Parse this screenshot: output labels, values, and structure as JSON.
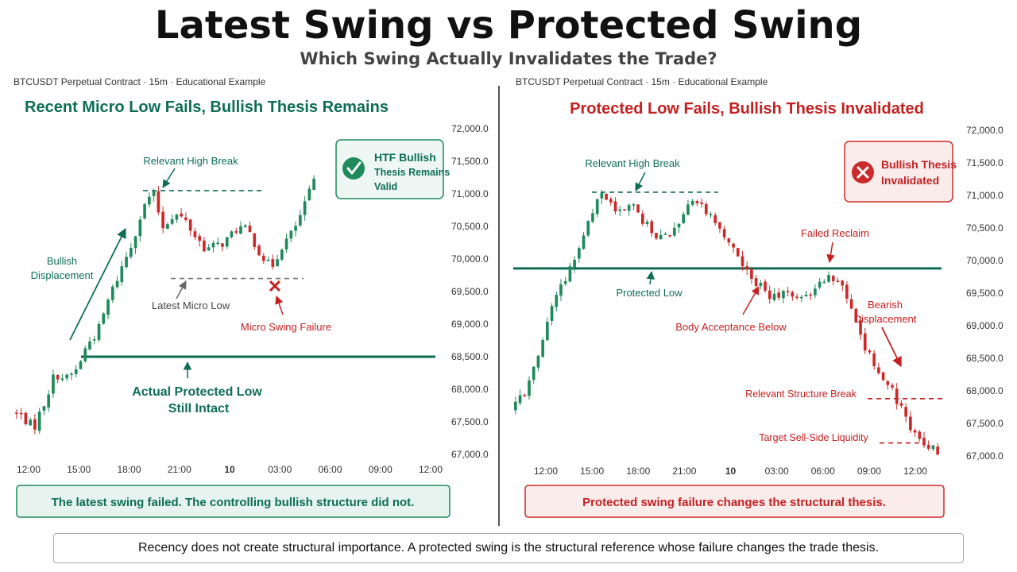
{
  "header": {
    "title": "Latest Swing vs Protected Swing",
    "subtitle": "Which Swing Actually Invalidates the Trade?"
  },
  "colors": {
    "bull": "#1f8a5b",
    "bear": "#cc2a2a",
    "green_text": "#0e6e55",
    "red_text": "#c42020",
    "protected_line": "#0e6e55"
  },
  "footer": {
    "text": "Recency does not create structural importance. A protected swing is the structural reference whose failure changes the trade thesis."
  },
  "chart_data": [
    {
      "type": "candlestick",
      "source_label": "BTCUSDT Perpetual Contract · 15m · Educational Example",
      "title": "Recent Micro Low Fails, Bullish Thesis Remains",
      "ylim": [
        66800,
        72200
      ],
      "yticks": [
        67000,
        67500,
        68000,
        68500,
        69000,
        69500,
        70000,
        70500,
        71000,
        71500,
        72000
      ],
      "ytick_labels": [
        "67,000.0",
        "67,500.0",
        "68,000.0",
        "68,500.0",
        "69,000.0",
        "69,500.0",
        "70,000.0",
        "70,500.0",
        "71,000.0",
        "71,500.0",
        "72,000.0"
      ],
      "xlim": [
        11.5,
        36.3
      ],
      "xticks": [
        {
          "t": 12,
          "label": "12:00"
        },
        {
          "t": 15,
          "label": "15:00"
        },
        {
          "t": 18,
          "label": "18:00"
        },
        {
          "t": 21,
          "label": "21:00"
        },
        {
          "t": 24,
          "label": "10"
        },
        {
          "t": 27,
          "label": "03:00"
        },
        {
          "t": 30,
          "label": "06:00"
        },
        {
          "t": 33,
          "label": "09:00"
        },
        {
          "t": 36,
          "label": "12:00"
        }
      ],
      "path": [
        67650,
        67580,
        67400,
        67800,
        68250,
        68150,
        68300,
        68700,
        68900,
        69400,
        69800,
        70200,
        70700,
        71050,
        70500,
        70700,
        70600,
        70350,
        70150,
        70200,
        70300,
        70500,
        70400,
        70100,
        69850,
        70200,
        70400,
        70750,
        71200
      ],
      "levels": [
        {
          "name": "relevant_high",
          "value": 71050,
          "style": "dashed"
        },
        {
          "name": "latest_micro_low",
          "value": 69700,
          "style": "dashed"
        },
        {
          "name": "protected_low",
          "value": 68500,
          "style": "solid"
        }
      ],
      "annotations": {
        "relevant_high": "Relevant High Break",
        "bullish_displacement_1": "Bullish",
        "bullish_displacement_2": "Displacement",
        "latest_micro_low": "Latest Micro Low",
        "micro_swing_failure": "Micro Swing Failure",
        "protected_low_1": "Actual Protected Low",
        "protected_low_2": "Still Intact"
      },
      "badge": {
        "line1": "HTF Bullish",
        "line2": "Thesis Remains",
        "line3": "Valid",
        "icon": "check-icon"
      },
      "caption": "The latest swing failed. The controlling bullish structure did not."
    },
    {
      "type": "candlestick",
      "source_label": "BTCUSDT Perpetual Contract · 15m · Educational Example",
      "title": "Protected Low Fails, Bullish Thesis Invalidated",
      "ylim": [
        66800,
        72200
      ],
      "yticks": [
        67000,
        67500,
        68000,
        68500,
        69000,
        69500,
        70000,
        70500,
        71000,
        71500,
        72000
      ],
      "ytick_labels": [
        "67,000.0",
        "67,500.0",
        "68,000.0",
        "68,500.0",
        "69,000.0",
        "69,500.0",
        "70,000.0",
        "70,500.0",
        "71,000.0",
        "71,500.0",
        "72,000.0"
      ],
      "xlim": [
        10.5,
        37.0
      ],
      "xticks": [
        {
          "t": 12,
          "label": "12:00"
        },
        {
          "t": 15,
          "label": "15:00"
        },
        {
          "t": 18,
          "label": "18:00"
        },
        {
          "t": 21,
          "label": "21:00"
        },
        {
          "t": 24,
          "label": "10"
        },
        {
          "t": 27,
          "label": "03:00"
        },
        {
          "t": 30,
          "label": "06:00"
        },
        {
          "t": 33,
          "label": "09:00"
        },
        {
          "t": 36,
          "label": "12:00"
        }
      ],
      "path": [
        67700,
        68000,
        68700,
        69500,
        69900,
        70600,
        71050,
        70700,
        70800,
        70500,
        70300,
        70600,
        71000,
        70700,
        70300,
        70000,
        69700,
        69400,
        69500,
        69400,
        69600,
        69800,
        69500,
        68800,
        68300,
        68000,
        67500,
        67200,
        67100
      ],
      "levels": [
        {
          "name": "relevant_high",
          "value": 71050,
          "style": "dashed"
        },
        {
          "name": "protected_low",
          "value": 69880,
          "style": "solid"
        },
        {
          "name": "relevant_structure_break",
          "value": 67880,
          "style": "dashed"
        },
        {
          "name": "target_sell_side_liquidity",
          "value": 67200,
          "style": "dashed"
        }
      ],
      "annotations": {
        "relevant_high": "Relevant High Break",
        "protected_low": "Protected Low",
        "body_acceptance": "Body Acceptance Below",
        "failed_reclaim": "Failed Reclaim",
        "bearish_displacement_1": "Bearish",
        "bearish_displacement_2": "Displacement",
        "structure_break": "Relevant Structure Break",
        "target_liquidity": "Target Sell-Side Liquidity"
      },
      "badge": {
        "line1": "Bullish Thesis",
        "line2": "Invalidated",
        "icon": "x-circle-icon"
      },
      "caption": "Protected swing failure changes the structural thesis."
    }
  ]
}
